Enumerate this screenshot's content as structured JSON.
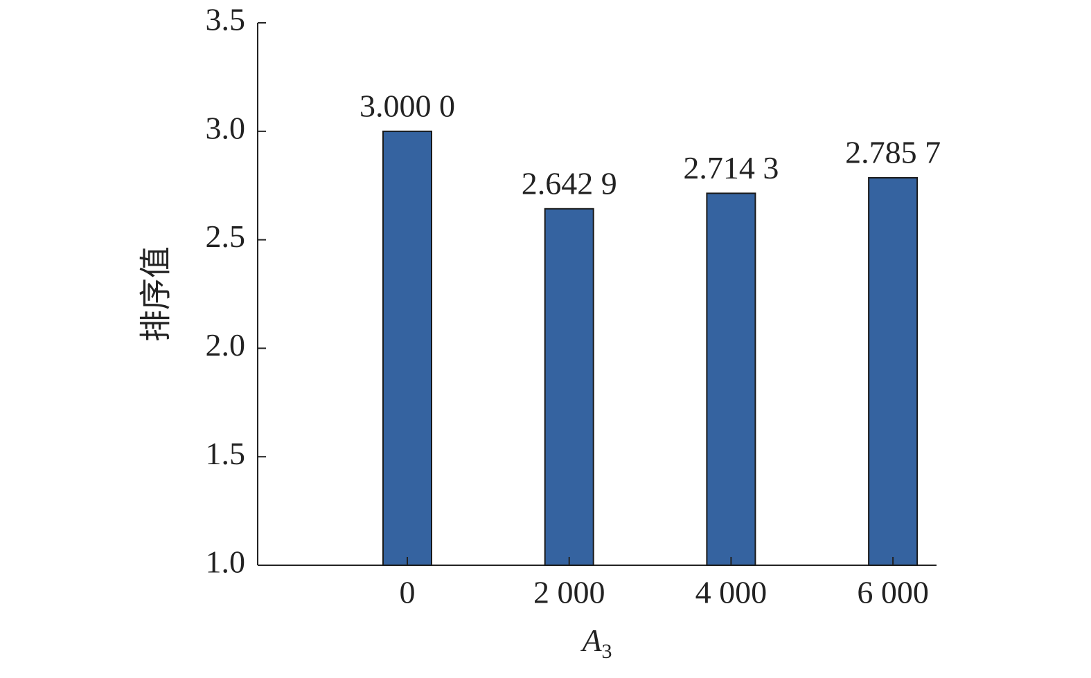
{
  "chart_data": {
    "type": "bar",
    "x_label": {
      "text": "A",
      "subscript": "3"
    },
    "y_label": "排序值",
    "categories": [
      "0",
      "2 000",
      "4 000",
      "6 000"
    ],
    "values": [
      3.0,
      2.6429,
      2.7143,
      2.7857
    ],
    "value_labels": [
      "3.000 0",
      "2.642 9",
      "2.714 3",
      "2.785 7"
    ],
    "color": "#3563a0",
    "ylim": [
      1.0,
      3.5
    ],
    "yticks": [
      {
        "value": 1.0,
        "label": "1.0"
      },
      1.5,
      {
        "value": 2.0,
        "label": "2.0"
      },
      2.5,
      {
        "value": 3.0,
        "label": "3.0"
      },
      3.5
    ],
    "grid": false
  }
}
